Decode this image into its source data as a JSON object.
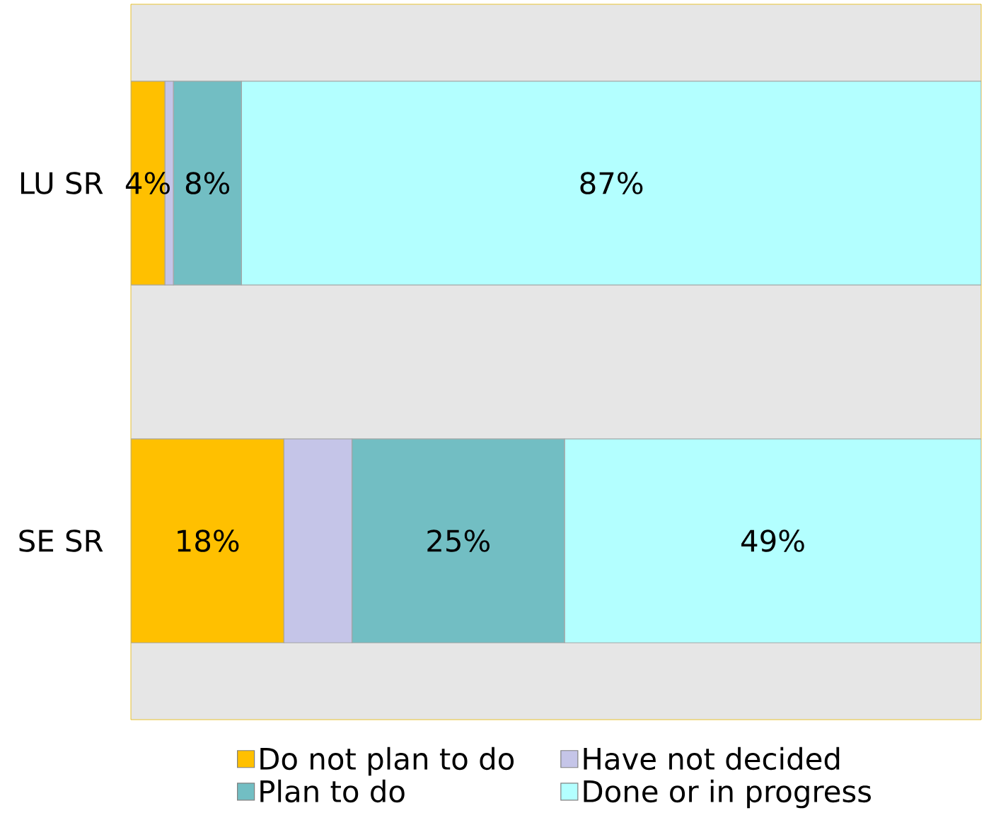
{
  "chart_data": {
    "type": "bar",
    "orientation": "horizontal",
    "stacked": true,
    "categories": [
      "LU SR",
      "SE SR"
    ],
    "series": [
      {
        "name": "Do not plan to do",
        "color": "#ffc000",
        "values": [
          4,
          18
        ],
        "value_labels": [
          "4%",
          "18%"
        ]
      },
      {
        "name": "Have not decided",
        "color": "#c5c5e8",
        "values": [
          1,
          8
        ],
        "value_labels": [
          null,
          null
        ]
      },
      {
        "name": "Plan to do",
        "color": "#72bec3",
        "values": [
          8,
          25
        ],
        "value_labels": [
          "8%",
          "25%"
        ]
      },
      {
        "name": "Done or in progress",
        "color": "#b3ffff",
        "values": [
          87,
          49
        ],
        "value_labels": [
          "87%",
          "49%"
        ]
      }
    ],
    "tick_labels": "y",
    "legend": "bottom"
  }
}
